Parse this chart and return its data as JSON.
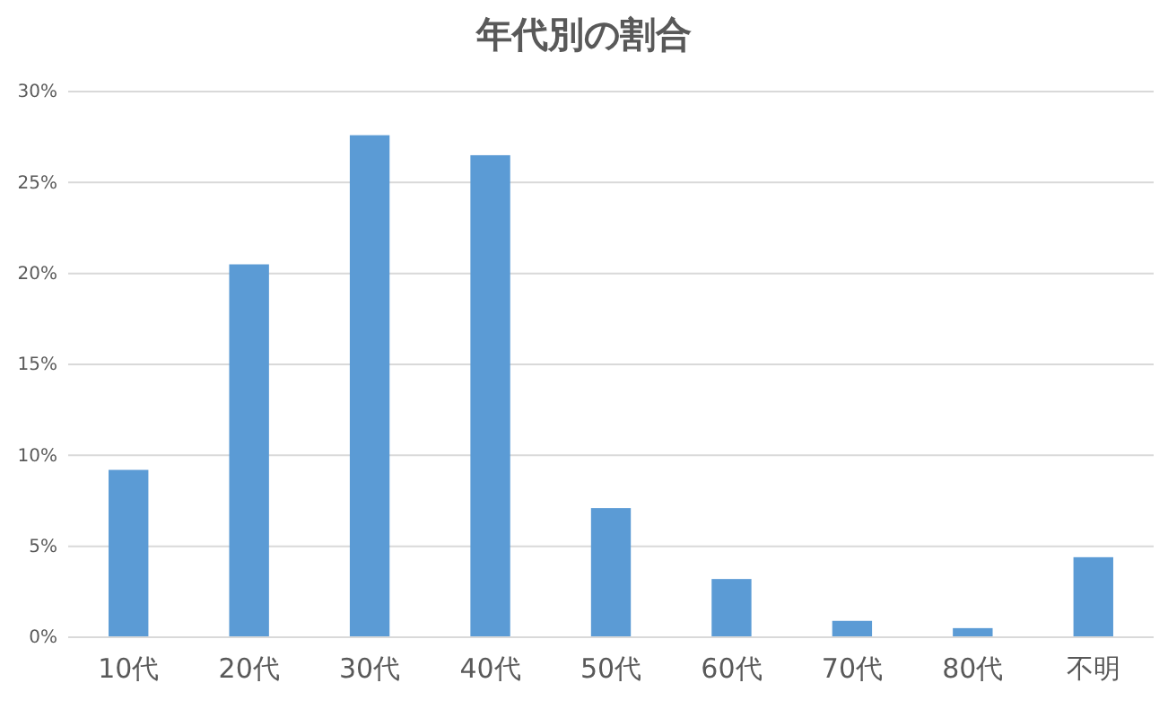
{
  "chart_data": {
    "type": "bar",
    "title": "年代別の割合",
    "categories": [
      "10代",
      "20代",
      "30代",
      "40代",
      "50代",
      "60代",
      "70代",
      "80代",
      "不明"
    ],
    "values": [
      9.2,
      20.5,
      27.6,
      26.5,
      7.1,
      3.2,
      0.9,
      0.5,
      4.4
    ],
    "color": "#5b9bd5",
    "ylim": [
      0,
      30
    ],
    "yticks": [
      {
        "value": 0,
        "label": "0%"
      },
      {
        "value": 5,
        "label": "5%"
      },
      {
        "value": 10,
        "label": "10%"
      },
      {
        "value": 15,
        "label": "15%"
      },
      {
        "value": 20,
        "label": "20%"
      },
      {
        "value": 25,
        "label": "25%"
      },
      {
        "value": 30,
        "label": "30%"
      }
    ],
    "grid": "y"
  }
}
